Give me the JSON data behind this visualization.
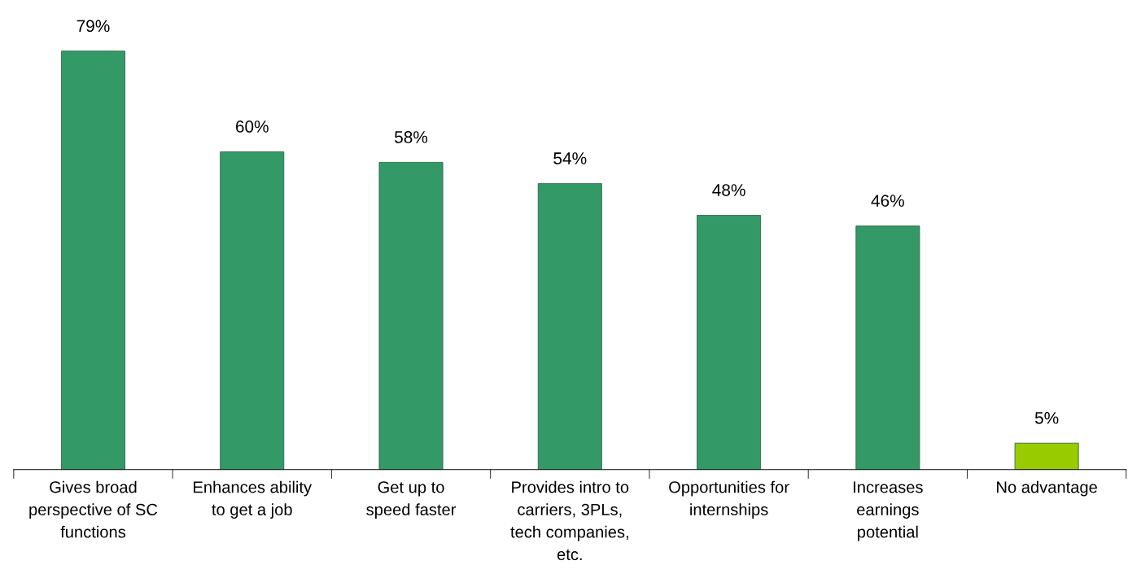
{
  "chart_data": {
    "type": "bar",
    "categories": [
      "Gives broad\nperspective of SC\nfunctions",
      "Enhances ability\nto get a job",
      "Get up to\nspeed faster",
      "Provides intro to\ncarriers, 3PLs,\ntech companies,\netc.",
      "Opportunities for\ninternships",
      "Increases\nearnings\npotential",
      "No advantage"
    ],
    "values": [
      79,
      60,
      58,
      54,
      48,
      46,
      5
    ],
    "value_labels": [
      "79%",
      "60%",
      "58%",
      "54%",
      "48%",
      "46%",
      "5%"
    ],
    "colors": [
      "#339966",
      "#339966",
      "#339966",
      "#339966",
      "#339966",
      "#339966",
      "#99cc00"
    ],
    "tick_labels": "x",
    "grid": false,
    "legend": false
  }
}
